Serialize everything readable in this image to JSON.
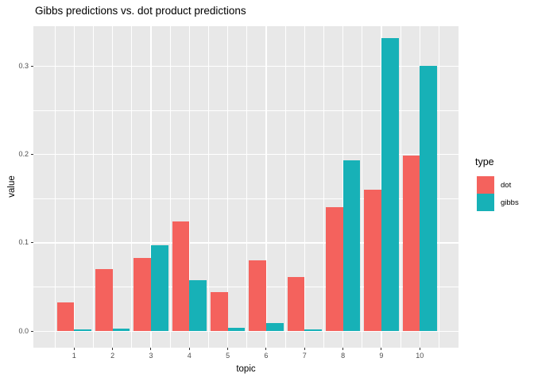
{
  "title": "Gibbs predictions vs. dot product predictions",
  "chart_data": {
    "type": "bar",
    "grouping": "dodged",
    "title": "Gibbs predictions vs. dot product predictions",
    "xlabel": "topic",
    "ylabel": "value",
    "categories": [
      "1",
      "2",
      "3",
      "4",
      "5",
      "6",
      "7",
      "8",
      "9",
      "10"
    ],
    "series": [
      {
        "name": "dot",
        "color": "#F4625D",
        "values": [
          0.033,
          0.07,
          0.083,
          0.124,
          0.044,
          0.08,
          0.061,
          0.14,
          0.16,
          0.199
        ]
      },
      {
        "name": "gibbs",
        "color": "#17B1B7",
        "values": [
          0.002,
          0.003,
          0.097,
          0.058,
          0.004,
          0.009,
          0.002,
          0.193,
          0.332,
          0.3
        ]
      }
    ],
    "y_ticks": [
      0,
      0.1,
      0.2,
      0.3
    ],
    "y_tick_labels": [
      "0.0",
      "0.1",
      "0.2",
      "0.3"
    ],
    "y_minor": [
      0.05,
      0.15,
      0.25
    ],
    "ylim": [
      -0.0186,
      0.3452
    ],
    "grid": true,
    "legend_position": "right",
    "panel_bg": "#E8E8E8",
    "grid_color": "#FFFFFF"
  },
  "legend": {
    "title": "type",
    "entries": [
      {
        "label": "dot",
        "color": "#F4625D"
      },
      {
        "label": "gibbs",
        "color": "#17B1B7"
      }
    ]
  }
}
